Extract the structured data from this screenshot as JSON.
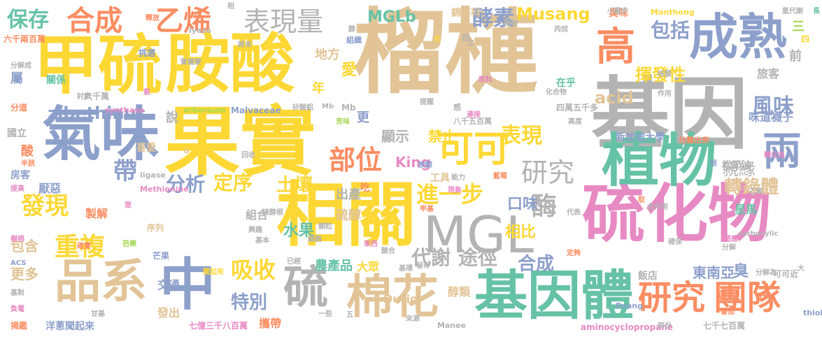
{
  "colors": {
    "tan": "#e2c497",
    "yellow": "#fdd835",
    "green": "#66c2a5",
    "blue": "#8da0cb",
    "pink": "#e78ac3",
    "orange": "#fc8d62",
    "lime": "#a6d854",
    "gray": "#b3b3b3"
  },
  "words": [
    "榴槤",
    "基因",
    "果實",
    "相關",
    "胺酸",
    "甲硫",
    "硫化物",
    "成熟",
    "氣味",
    "植物",
    "基因體",
    "中",
    "品系",
    "棉花",
    "硫",
    "可可",
    "兩",
    "高",
    "研究",
    "團隊",
    "MGL",
    "合成",
    "乙烯",
    "表現量",
    "酵素",
    "包括",
    "部位",
    "研究",
    "帶",
    "進一步",
    "重複",
    "發現",
    "吸收",
    "酶",
    "風味",
    "轉錄體",
    "揮發性",
    "定序",
    "表現",
    "分析",
    "土壤",
    "MGLb",
    "Musang",
    "保存",
    "zibethinus",
    "acid",
    "King",
    "親緣",
    "口味",
    "水果",
    "相比",
    "代謝",
    "途徑",
    "合成",
    "特別",
    "東南亞",
    "臭",
    "更多",
    "包含",
    "農產品",
    "大眾",
    "出產",
    "顯示",
    "禁止",
    "硫醇",
    "更",
    "說",
    "年",
    "愛",
    "地方",
    "前",
    "三",
    "旅客",
    "味道襪子",
    "新加坡大學",
    "飯店",
    "星馬",
    "Durio",
    "松節油",
    "醇類",
    "組合",
    "製解",
    "屬",
    "厭惡",
    "酸",
    "國立",
    "房客",
    "讓",
    "交通",
    "發出",
    "洋蔥聞起來",
    "攜帶",
    "七億三千八百萬",
    "七千七百萬",
    "aminocyclopropane",
    "carboxylic",
    "Malvaceae",
    "arboreum",
    "synthase",
    "Methionine",
    "ligase",
    "lyase",
    "Mb",
    "Puang",
    "Manee",
    "Monthong",
    "thiol",
    "四萬五千多",
    "八千五百萬",
    "六千萬",
    "六千兩百萬",
    "臭味",
    "錦葵科",
    "小廠步",
    "氫代謝",
    "機制",
    "丙烷",
    "化合物",
    "在乎",
    "關係",
    "挑選",
    "分道",
    "分解成",
    "序列",
    "喜愛",
    "工具",
    "吃",
    "感",
    "原料",
    "作用",
    "核酸",
    "高度",
    "連接",
    "苦味",
    "可可近",
    "分離出來",
    "轉化為",
    "香蕉",
    "確保",
    "根",
    "乙烯",
    "代表",
    "合作用",
    "取",
    "感應",
    "分解為",
    "分解",
    "定夠",
    "部份",
    "番茄",
    "來源",
    "五",
    "能力",
    "酸合",
    "硫醇根",
    "基本",
    "確實",
    "聞起來",
    "芒果",
    "基對",
    "一些",
    "東西",
    "留存",
    "已經",
    "現象",
    "甲基",
    "胺酸",
    "藍莓",
    "樹棉",
    "負電",
    "回收",
    "討厭",
    "提高",
    "半胱",
    "興趣",
    "芭樂",
    "眾",
    "ACS",
    "揭鑑",
    "甘基",
    "細胞",
    "顆粒",
    "基環",
    "相",
    "釋放",
    "醇",
    "組織",
    "光",
    "將來",
    "賀爾蒙",
    "氨",
    "四",
    "矽酸鋁",
    "提醒",
    "長",
    "四",
    "三",
    "大",
    "Mb",
    "G"
  ]
}
